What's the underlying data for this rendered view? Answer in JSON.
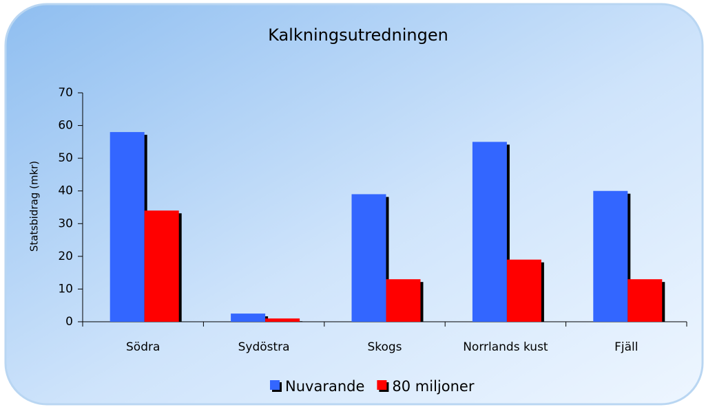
{
  "chart_data": {
    "type": "bar",
    "title": "Kalkningsutredningen",
    "y_label": "Statsbidrag (mkr)",
    "categories": [
      "Södra",
      "Sydöstra",
      "Skogs",
      "Norrlands kust",
      "Fjäll"
    ],
    "series": [
      {
        "name": "Nuvarande",
        "color": "#3366ff",
        "values": [
          58,
          2.5,
          39,
          55,
          40
        ]
      },
      {
        "name": "80 miljoner",
        "color": "#ff0000",
        "values": [
          34,
          1,
          13,
          19,
          13
        ]
      }
    ],
    "ylim": [
      0,
      70
    ],
    "yticks": [
      0,
      10,
      20,
      30,
      40,
      50,
      60,
      70
    ],
    "grid": false,
    "legend": "bottom"
  }
}
